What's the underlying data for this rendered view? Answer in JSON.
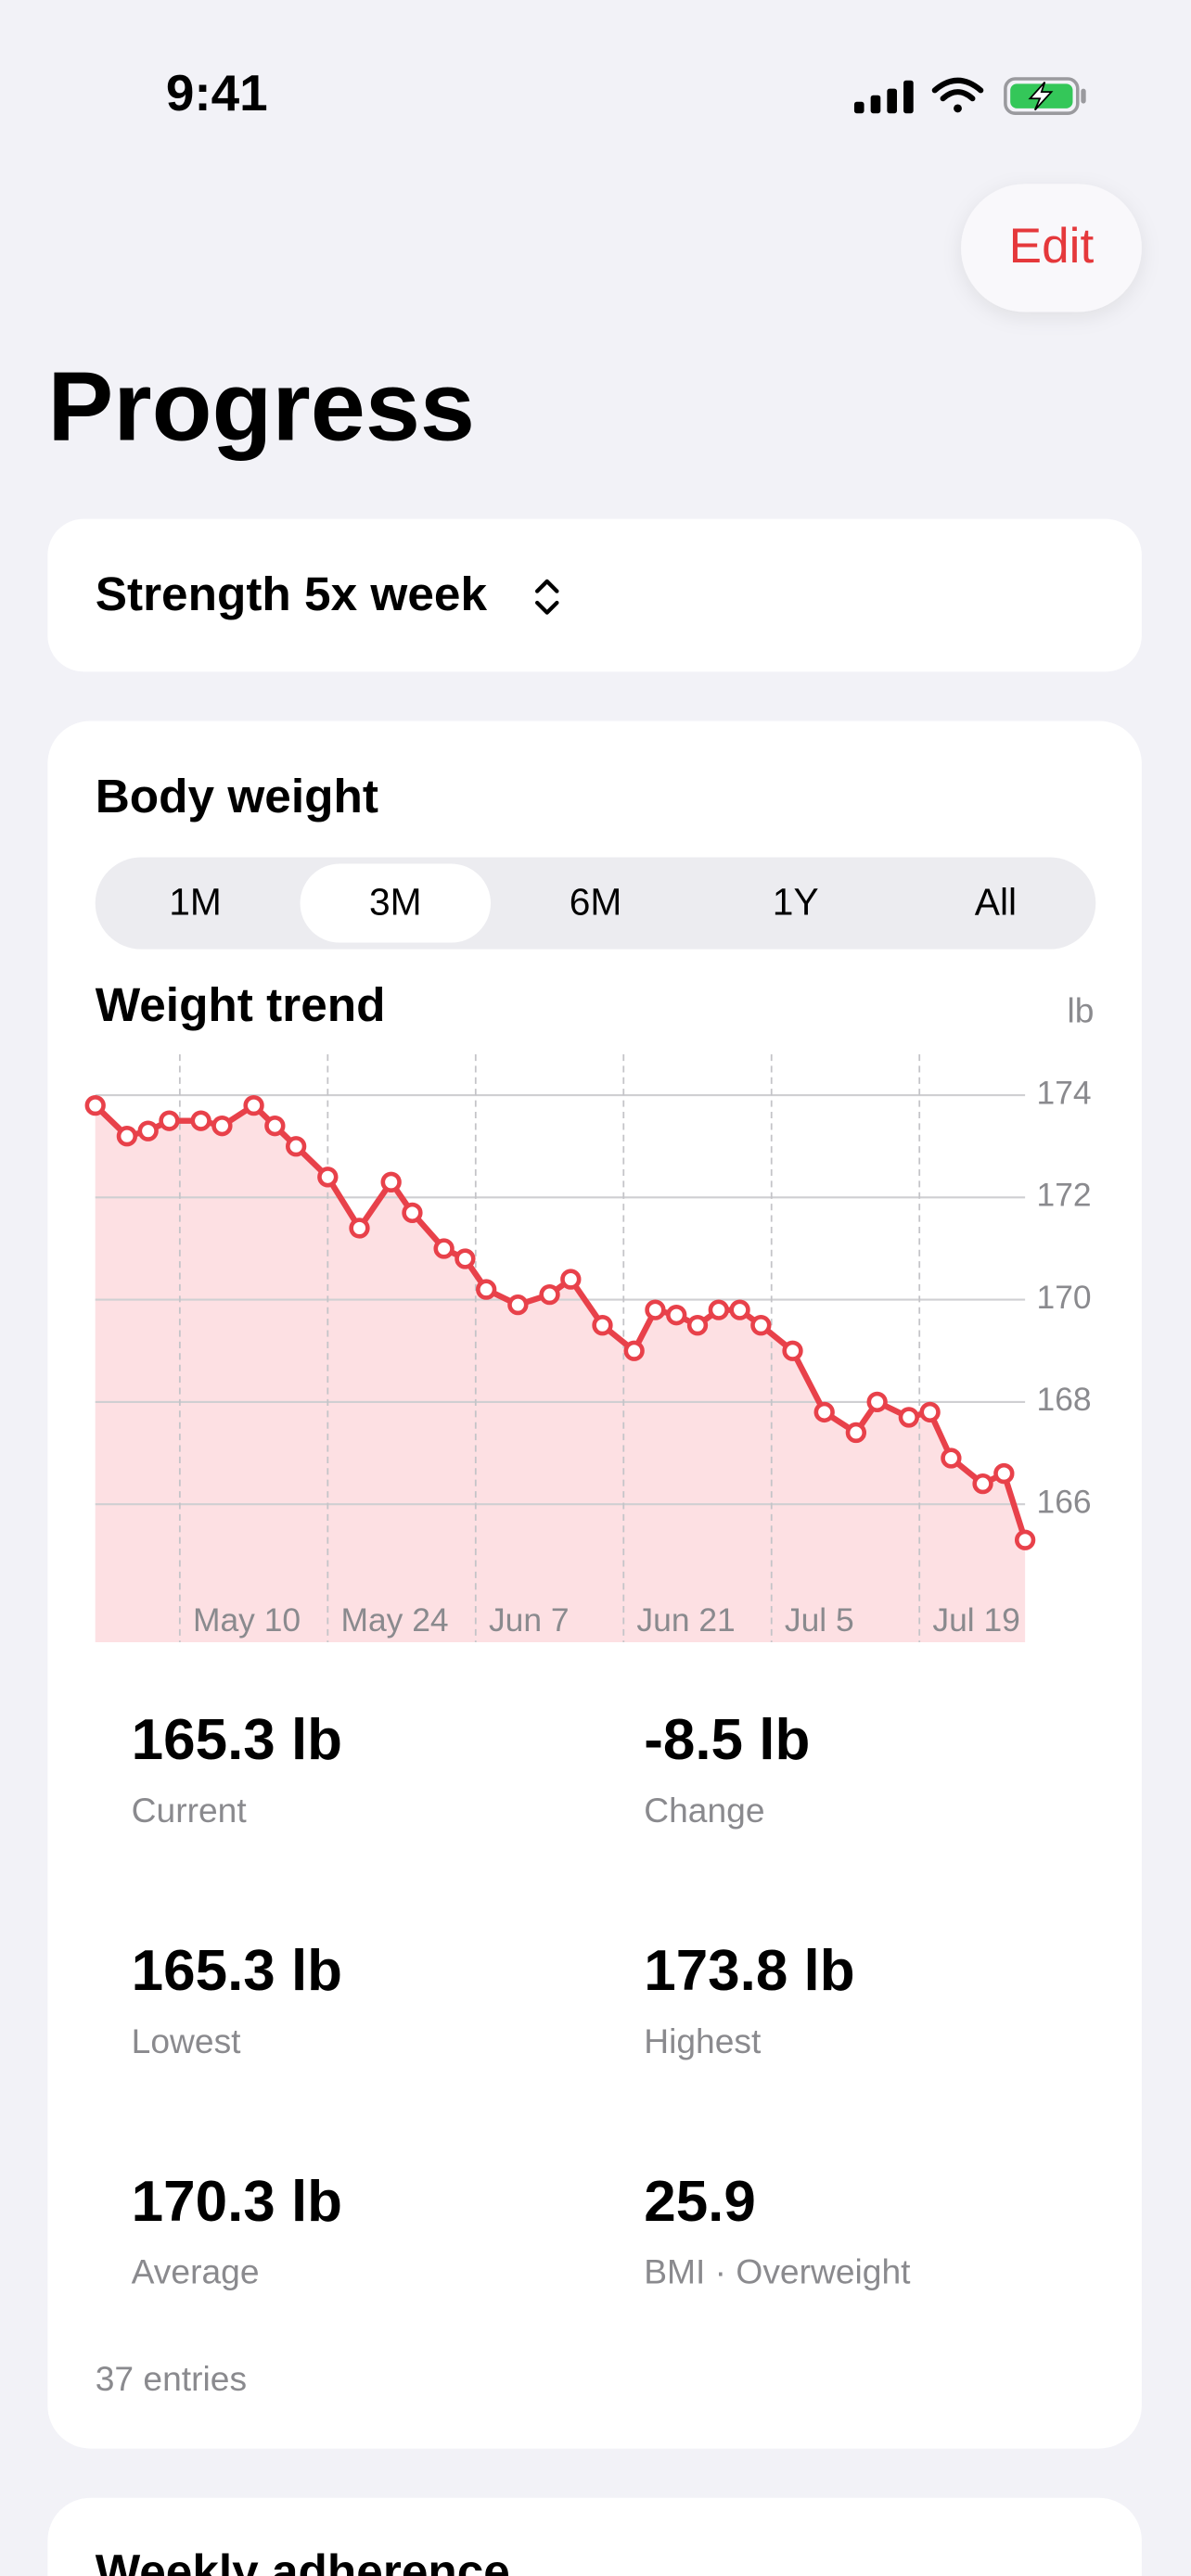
{
  "status_bar": {
    "time": "9:41"
  },
  "header": {
    "edit_button": "Edit",
    "title": "Progress"
  },
  "plan_selector": {
    "label": "Strength 5x week"
  },
  "body_weight_card": {
    "title": "Body weight",
    "ranges": [
      "1M",
      "3M",
      "6M",
      "1Y",
      "All"
    ],
    "selected_index": 1,
    "stats": [
      {
        "value": "165.3 lb",
        "label": "Current"
      },
      {
        "value": "-8.5 lb",
        "label": "Change"
      },
      {
        "value": "165.3 lb",
        "label": "Lowest"
      },
      {
        "value": "173.8 lb",
        "label": "Highest"
      },
      {
        "value": "170.3 lb",
        "label": "Average"
      },
      {
        "value": "25.9",
        "label": "BMI · Overweight"
      }
    ],
    "entries": "37 entries"
  },
  "chart_data": {
    "type": "line",
    "title": "Weight trend",
    "unit_label": "lb",
    "x": [
      "May 2",
      "May 5",
      "May 7",
      "May 9",
      "May 12",
      "May 14",
      "May 17",
      "May 19",
      "May 21",
      "May 24",
      "May 27",
      "May 30",
      "Jun 1",
      "Jun 4",
      "Jun 6",
      "Jun 8",
      "Jun 11",
      "Jun 14",
      "Jun 16",
      "Jun 19",
      "Jun 22",
      "Jun 24",
      "Jun 26",
      "Jun 28",
      "Jun 30",
      "Jul 2",
      "Jul 4",
      "Jul 7",
      "Jul 10",
      "Jul 13",
      "Jul 15",
      "Jul 18",
      "Jul 20",
      "Jul 22",
      "Jul 25",
      "Jul 27",
      "Jul 29"
    ],
    "values": [
      173.8,
      173.2,
      173.3,
      173.5,
      173.5,
      173.4,
      173.8,
      173.4,
      173.0,
      172.4,
      171.4,
      172.3,
      171.7,
      171.0,
      170.8,
      170.2,
      169.9,
      170.1,
      170.4,
      169.5,
      169.0,
      169.8,
      169.7,
      169.5,
      169.8,
      169.8,
      169.5,
      169.0,
      167.8,
      167.4,
      168.0,
      167.7,
      167.8,
      166.9,
      166.4,
      166.6,
      165.3
    ],
    "color": "#e8414a",
    "area_color": "#fde0e3",
    "xlim": [
      "May 2",
      "Jul 29"
    ],
    "xticks": [
      "May 10",
      "May 24",
      "Jun 7",
      "Jun 21",
      "Jul 5",
      "Jul 19"
    ],
    "ylim": [
      163.3,
      174.8
    ],
    "yticks": [
      166,
      168,
      170,
      172,
      174
    ],
    "grid": true
  },
  "next_card": {
    "title": "Weekly adherence"
  }
}
